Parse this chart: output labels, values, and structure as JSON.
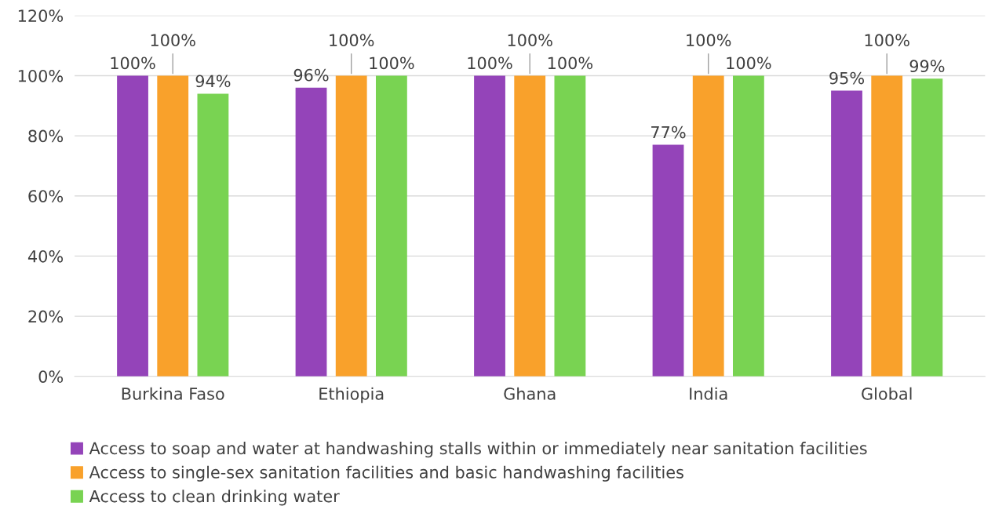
{
  "chart_data": {
    "type": "bar",
    "categories": [
      "Burkina Faso",
      "Ethiopia",
      "Ghana",
      "India",
      "Global"
    ],
    "series": [
      {
        "name": "Access to soap and water at handwashing stalls within or immediately near sanitation facilities",
        "color": "#9444b9",
        "values": [
          100,
          96,
          100,
          77,
          95
        ],
        "value_labels": [
          "100%",
          "96%",
          "100%",
          "77%",
          "95%"
        ]
      },
      {
        "name": "Access to single-sex sanitation facilities and basic handwashing facilities",
        "color": "#f9a12b",
        "values": [
          100,
          100,
          100,
          100,
          100
        ],
        "value_labels": [
          "100%",
          "100%",
          "100%",
          "100%",
          "100%"
        ]
      },
      {
        "name": "Access to clean drinking water",
        "color": "#79d352",
        "values": [
          94,
          100,
          100,
          100,
          99
        ],
        "value_labels": [
          "94%",
          "100%",
          "100%",
          "100%",
          "99%"
        ]
      }
    ],
    "ylim": [
      0,
      120
    ],
    "yticks": [
      {
        "value": 0,
        "label": "0%"
      },
      {
        "value": 20,
        "label": "20%"
      },
      {
        "value": 40,
        "label": "40%"
      },
      {
        "value": 60,
        "label": "60%"
      },
      {
        "value": 80,
        "label": "80%"
      },
      {
        "value": 100,
        "label": "100%"
      },
      {
        "value": 120,
        "label": "120%"
      }
    ],
    "grid": "y",
    "legend": "bottom"
  }
}
